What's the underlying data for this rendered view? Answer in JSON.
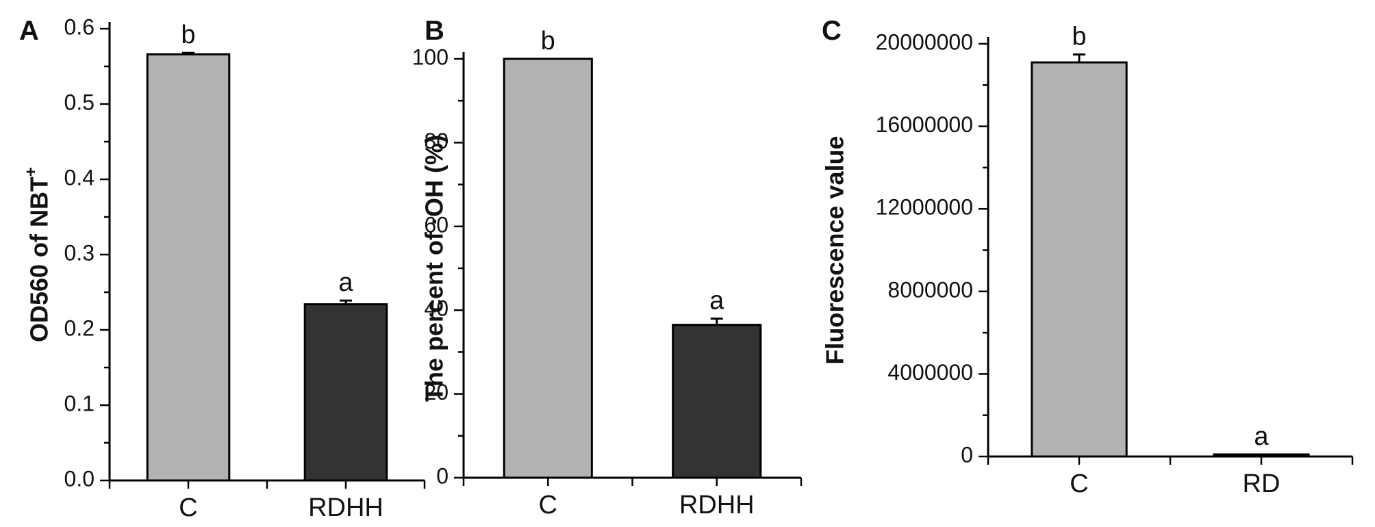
{
  "chart_data": [
    {
      "panel": "A",
      "type": "bar",
      "ylabel": "OD560 of NBT",
      "ylabel_sup": "+",
      "categories": [
        "C",
        "RDHH"
      ],
      "values": [
        0.566,
        0.234
      ],
      "errors": [
        0.002,
        0.005
      ],
      "significance": [
        "b",
        "a"
      ],
      "ylim": [
        0,
        0.6
      ],
      "yticks": [
        0.0,
        0.1,
        0.2,
        0.3,
        0.4,
        0.5,
        0.6
      ],
      "ytick_labels": [
        "0.0",
        "0.1",
        "0.2",
        "0.3",
        "0.4",
        "0.5",
        "0.6"
      ],
      "bar_colors": [
        "#b2b2b2",
        "#333333"
      ]
    },
    {
      "panel": "B",
      "type": "bar",
      "ylabel": "The percent of ·OH  (%)",
      "ylabel_sup": "",
      "categories": [
        "C",
        "RDHH"
      ],
      "values": [
        100,
        36.5
      ],
      "errors": [
        0,
        1.5
      ],
      "significance": [
        "b",
        "a"
      ],
      "ylim": [
        0,
        100
      ],
      "yticks": [
        0,
        20,
        40,
        60,
        80,
        100
      ],
      "ytick_labels": [
        "0",
        "20",
        "40",
        "60",
        "80",
        "100"
      ],
      "bar_colors": [
        "#b2b2b2",
        "#333333"
      ]
    },
    {
      "panel": "C",
      "type": "bar",
      "ylabel": "Fluorescence value",
      "ylabel_sup": "",
      "categories": [
        "C",
        "RD"
      ],
      "values": [
        19100000,
        100000
      ],
      "errors": [
        380000,
        0
      ],
      "significance": [
        "b",
        "a"
      ],
      "ylim": [
        0,
        20000000
      ],
      "yticks": [
        0,
        4000000,
        8000000,
        12000000,
        16000000,
        20000000
      ],
      "ytick_labels": [
        "0",
        "4000000",
        "8000000",
        "12000000",
        "16000000",
        "20000000"
      ],
      "bar_colors": [
        "#b2b2b2",
        "#333333"
      ]
    }
  ]
}
